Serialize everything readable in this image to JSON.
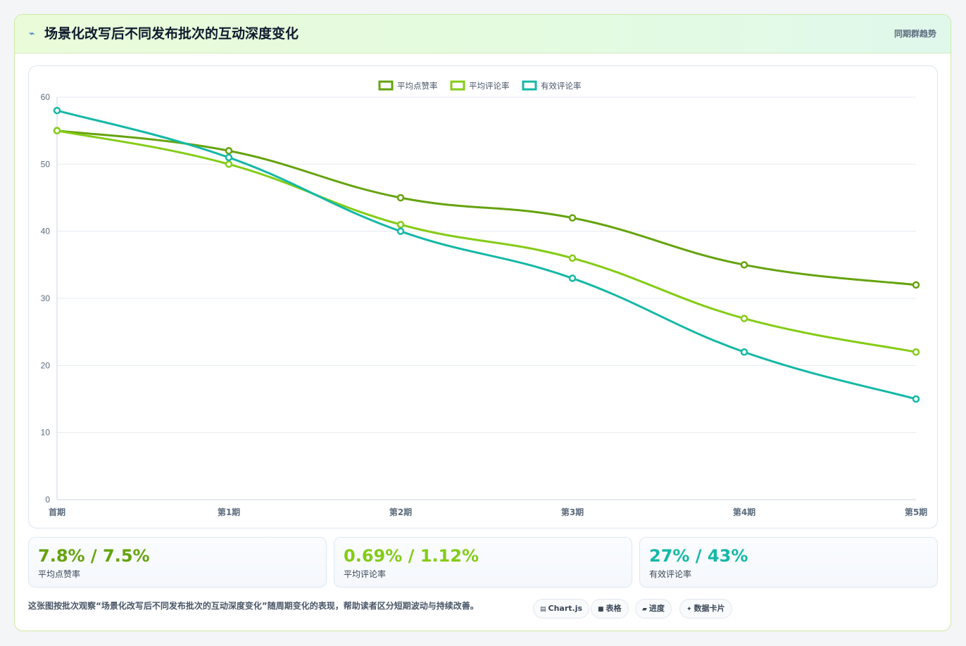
{
  "header": {
    "title": "场景化改写后不同发布批次的互动深度变化",
    "right_label": "同期群趋势"
  },
  "chart_data": {
    "type": "line",
    "categories": [
      "首期",
      "第1期",
      "第2期",
      "第3期",
      "第4期",
      "第5期"
    ],
    "series": [
      {
        "name": "平均点赞率",
        "color": "#65a30d",
        "values": [
          55,
          52,
          45,
          42,
          35,
          32
        ]
      },
      {
        "name": "平均评论率",
        "color": "#84cc16",
        "values": [
          55,
          50,
          41,
          36,
          27,
          22
        ]
      },
      {
        "name": "有效评论率",
        "color": "#14b8a6",
        "values": [
          58,
          51,
          40,
          33,
          22,
          15
        ]
      }
    ],
    "ylim": [
      0,
      60
    ],
    "yticks": [
      0,
      10,
      20,
      30,
      40,
      50,
      60
    ],
    "grid": true,
    "legend_position": "top-center"
  },
  "kpis": [
    {
      "value": "7.8% / 7.5%",
      "label": "平均点赞率",
      "color": "#65a30d"
    },
    {
      "value": "0.69% / 1.12%",
      "label": "平均评论率",
      "color": "#84cc16"
    },
    {
      "value": "27% / 43%",
      "label": "有效评论率",
      "color": "#14b8a6"
    }
  ],
  "footer": {
    "description": "这张图按批次观察“场景化改写后不同发布批次的互动深度变化”随周期变化的表现，帮助读者区分短期波动与持续改善。",
    "tags": [
      {
        "label": "Chart.js",
        "icon": "chart-icon"
      },
      {
        "label": "表格",
        "icon": "table-icon"
      },
      {
        "label": "进度",
        "icon": "progress-icon"
      },
      {
        "label": "数据卡片",
        "icon": "card-icon"
      }
    ]
  }
}
